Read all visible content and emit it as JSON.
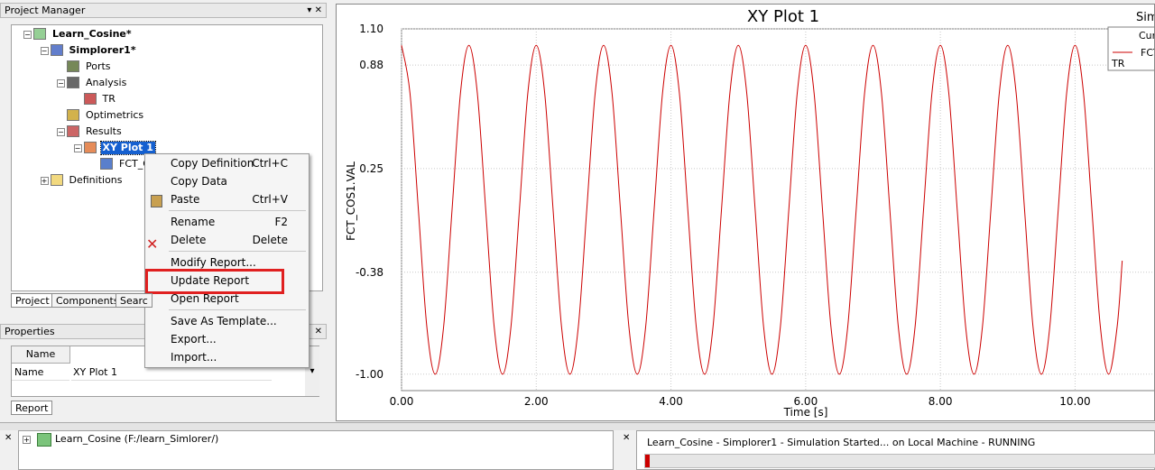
{
  "project_manager": {
    "title": "Project Manager",
    "tree": [
      "Learn_Cosine*",
      "Simplorer1*",
      "Ports",
      "Analysis",
      "TR",
      "Optimetrics",
      "Results",
      "XY Plot 1",
      "FCT_C",
      "Definitions"
    ],
    "tabs": [
      "Project",
      "Components",
      "Searc"
    ]
  },
  "context_menu": [
    {
      "label": "Copy Definition",
      "shortcut": "Ctrl+C"
    },
    {
      "label": "Copy Data"
    },
    {
      "label": "Paste",
      "shortcut": "Ctrl+V"
    },
    {
      "label": "Rename",
      "shortcut": "F2"
    },
    {
      "label": "Delete",
      "shortcut": "Delete"
    },
    {
      "label": "Modify Report..."
    },
    {
      "label": "Update Report"
    },
    {
      "label": "Open Report"
    },
    {
      "label": "Save As Template..."
    },
    {
      "label": "Export..."
    },
    {
      "label": "Import..."
    }
  ],
  "properties": {
    "title": "Properties",
    "header": "Name",
    "rows": [
      [
        "Name",
        "XY Plot 1"
      ]
    ],
    "tabs": [
      "Report"
    ]
  },
  "chart_data": {
    "type": "line",
    "title": "XY Plot 1",
    "subtitle": "Sim",
    "x_label": "Time [s]",
    "y_label": "FCT_COS1.VAL",
    "legend_title": "Cur",
    "legend_note": "TR",
    "grid": true,
    "xlim": [
      0,
      11.2
    ],
    "ylim": [
      -1.1,
      1.1
    ],
    "xticks": [
      {
        "value": 0,
        "label": "0.00"
      },
      {
        "value": 2,
        "label": "2.00"
      },
      {
        "value": 4,
        "label": "4.00"
      },
      {
        "value": 6,
        "label": "6.00"
      },
      {
        "value": 8,
        "label": "8.00"
      },
      {
        "value": 10,
        "label": "10.00"
      }
    ],
    "yticks": [
      {
        "value": 1.1,
        "label": "1.10"
      },
      0.88,
      0.25,
      -0.38,
      {
        "value": -1,
        "label": "-1.00"
      }
    ],
    "x": [
      0,
      0.125,
      0.25,
      0.375,
      0.5,
      0.625,
      0.75,
      0.875,
      1,
      1.125,
      1.25,
      1.375,
      1.5,
      1.625,
      1.75,
      1.875,
      2,
      2.125,
      2.25,
      2.375,
      2.5,
      2.625,
      2.75,
      2.875,
      3,
      3.125,
      3.25,
      3.375,
      3.5,
      3.625,
      3.75,
      3.875,
      4,
      4.125,
      4.25,
      4.375,
      4.5,
      4.625,
      4.75,
      4.875,
      5,
      5.125,
      5.25,
      5.375,
      5.5,
      5.625,
      5.75,
      5.875,
      6,
      6.125,
      6.25,
      6.375,
      6.5,
      6.625,
      6.75,
      6.875,
      7,
      7.125,
      7.25,
      7.375,
      7.5,
      7.625,
      7.75,
      7.875,
      8,
      8.125,
      8.25,
      8.375,
      8.5,
      8.625,
      8.75,
      8.875,
      9,
      9.125,
      9.25,
      9.375,
      9.5,
      9.625,
      9.75,
      9.875,
      10,
      10.125,
      10.25,
      10.375,
      10.5,
      10.625,
      10.7
    ],
    "series": [
      {
        "name": "FCT",
        "color": "#cc0000",
        "values": [
          1,
          0.71,
          0,
          -0.71,
          -1,
          -0.71,
          0,
          0.71,
          1,
          0.71,
          0,
          -0.71,
          -1,
          -0.71,
          0,
          0.71,
          1,
          0.71,
          0,
          -0.71,
          -1,
          -0.71,
          0,
          0.71,
          1,
          0.71,
          0,
          -0.71,
          -1,
          -0.71,
          0,
          0.71,
          1,
          0.71,
          0,
          -0.71,
          -1,
          -0.71,
          0,
          0.71,
          1,
          0.71,
          0,
          -0.71,
          -1,
          -0.71,
          0,
          0.71,
          1,
          0.71,
          0,
          -0.71,
          -1,
          -0.71,
          0,
          0.71,
          1,
          0.71,
          0,
          -0.71,
          -1,
          -0.71,
          0,
          0.71,
          1,
          0.71,
          0,
          -0.71,
          -1,
          -0.71,
          0,
          0.71,
          1,
          0.71,
          0,
          -0.71,
          -1,
          -0.71,
          0,
          0.71,
          1,
          0.71,
          0,
          -0.71,
          -1,
          -0.71,
          -0.31
        ]
      }
    ]
  },
  "bottom": {
    "project_tree": "Learn_Cosine (F:/learn_Simlorer/)",
    "message": "Learn_Cosine - Simplorer1 - Simulation Started... on Local Machine - RUNNING"
  }
}
